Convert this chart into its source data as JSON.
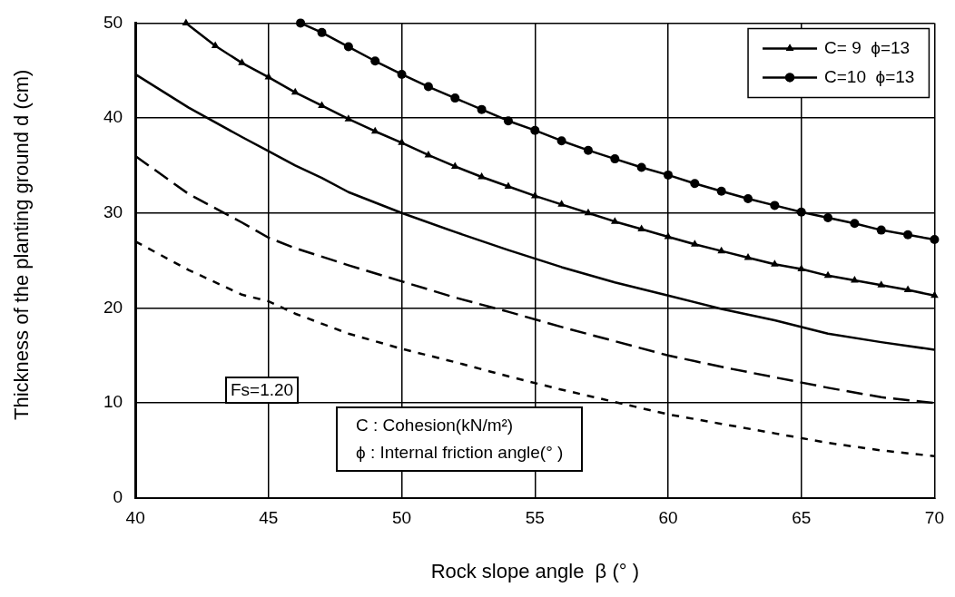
{
  "chart_data": {
    "type": "line",
    "xlabel": "Rock slope angle  β (° )",
    "ylabel": "Thickness of the planting ground d (cm)",
    "xlim": [
      40,
      70
    ],
    "ylim": [
      0,
      50
    ],
    "xticks": [
      40,
      45,
      50,
      55,
      60,
      65,
      70
    ],
    "yticks": [
      0,
      10,
      20,
      30,
      40,
      50
    ],
    "grid": true,
    "legend": "top right",
    "annotations": [
      "C : Cohesion(kN/m²)",
      "ϕ : Internal friction angle(° )",
      "Fs=1.20"
    ],
    "series": [
      {
        "color": "#000000",
        "line_style": "dotted",
        "marker": "none",
        "x": [
          40,
          42,
          44,
          45,
          46,
          48,
          50,
          52,
          54,
          56,
          58,
          60,
          62,
          64,
          66,
          68,
          70
        ],
        "values": [
          27.0,
          24.0,
          21.4,
          20.7,
          19.4,
          17.3,
          15.7,
          14.3,
          12.8,
          11.4,
          10.1,
          8.8,
          7.8,
          6.8,
          5.8,
          5.0,
          4.4
        ]
      },
      {
        "color": "#000000",
        "line_style": "dashed",
        "marker": "none",
        "x": [
          40,
          42,
          44,
          45,
          46,
          48,
          50,
          52,
          54,
          56,
          58,
          60,
          62,
          64,
          66,
          68,
          70
        ],
        "values": [
          36.0,
          32.0,
          29.0,
          27.4,
          26.3,
          24.5,
          22.8,
          21.1,
          19.6,
          18.0,
          16.5,
          15.0,
          13.8,
          12.7,
          11.6,
          10.6,
          10.0
        ]
      },
      {
        "color": "#000000",
        "line_style": "solid",
        "marker": "none",
        "x": [
          40,
          42,
          44,
          45,
          46,
          47,
          48,
          50,
          52,
          54,
          56,
          58,
          60,
          62,
          64,
          66,
          68,
          70
        ],
        "values": [
          44.6,
          41.1,
          38.0,
          36.5,
          35.0,
          33.7,
          32.2,
          30.0,
          28.0,
          26.1,
          24.3,
          22.7,
          21.3,
          19.9,
          18.7,
          17.3,
          16.4,
          15.6
        ]
      },
      {
        "name": "C= 9  ϕ=13",
        "color": "#000000",
        "line_style": "solid",
        "marker": "triangle",
        "x": [
          41.9,
          43,
          44,
          45,
          46,
          47,
          48,
          49,
          50,
          51,
          52,
          53,
          54,
          55,
          56,
          57,
          58,
          59,
          60,
          61,
          62,
          63,
          64,
          65,
          66,
          67,
          68,
          69,
          70
        ],
        "values": [
          50,
          47.6,
          45.8,
          44.3,
          42.7,
          41.3,
          39.9,
          38.6,
          37.4,
          36.1,
          34.9,
          33.8,
          32.8,
          31.8,
          30.9,
          30.0,
          29.1,
          28.3,
          27.5,
          26.7,
          26.0,
          25.3,
          24.6,
          24.1,
          23.4,
          22.9,
          22.4,
          21.9,
          21.3
        ]
      },
      {
        "name": "C=10  ϕ=13",
        "color": "#000000",
        "line_style": "solid",
        "marker": "circle",
        "x": [
          46.2,
          47,
          48,
          49,
          50,
          51,
          52,
          53,
          54,
          55,
          56,
          57,
          58,
          59,
          60,
          61,
          62,
          63,
          64,
          65,
          66,
          67,
          68,
          69,
          70
        ],
        "values": [
          50,
          49.0,
          47.5,
          46.0,
          44.6,
          43.3,
          42.1,
          40.9,
          39.7,
          38.7,
          37.6,
          36.6,
          35.7,
          34.8,
          34.0,
          33.1,
          32.3,
          31.5,
          30.8,
          30.1,
          29.5,
          28.9,
          28.2,
          27.7,
          27.2
        ]
      }
    ]
  }
}
